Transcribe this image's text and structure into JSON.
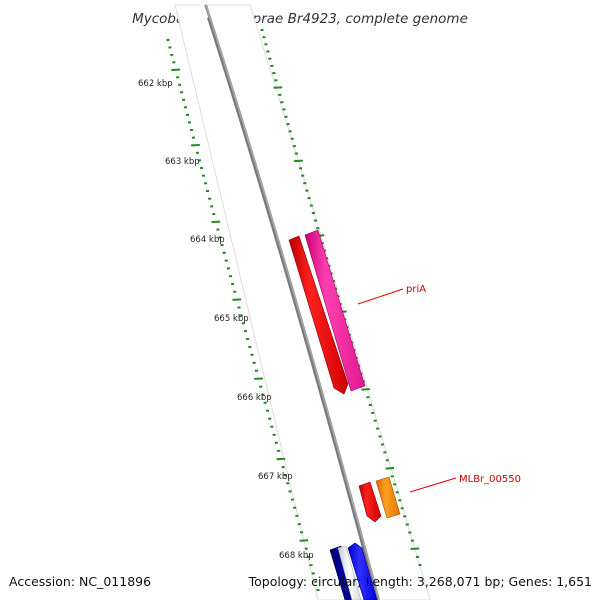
{
  "title": "Mycobacterium leprae Br4923, complete genome",
  "footer": {
    "accession": "Accession: NC_011896",
    "summary": "Topology: circular; Length: 3,268,071 bp; Genes: 1,651"
  },
  "ruler_labels": [
    "662 kbp",
    "663 kbp",
    "664 kbp",
    "665 kbp",
    "666 kbp",
    "667 kbp",
    "668 kbp"
  ],
  "gene_labels": {
    "priA": "priA",
    "mlbr": "MLBr_00550"
  },
  "colors": {
    "backbone": "#808080",
    "tick": "#228B22",
    "label_line": "#e00000",
    "cds_reverse": "#ff0000",
    "gene_magenta": "#ff1ea0",
    "gene_orange": "#ff8c00",
    "gene_navy": "#00007a",
    "gene_blue": "#1010ff"
  }
}
